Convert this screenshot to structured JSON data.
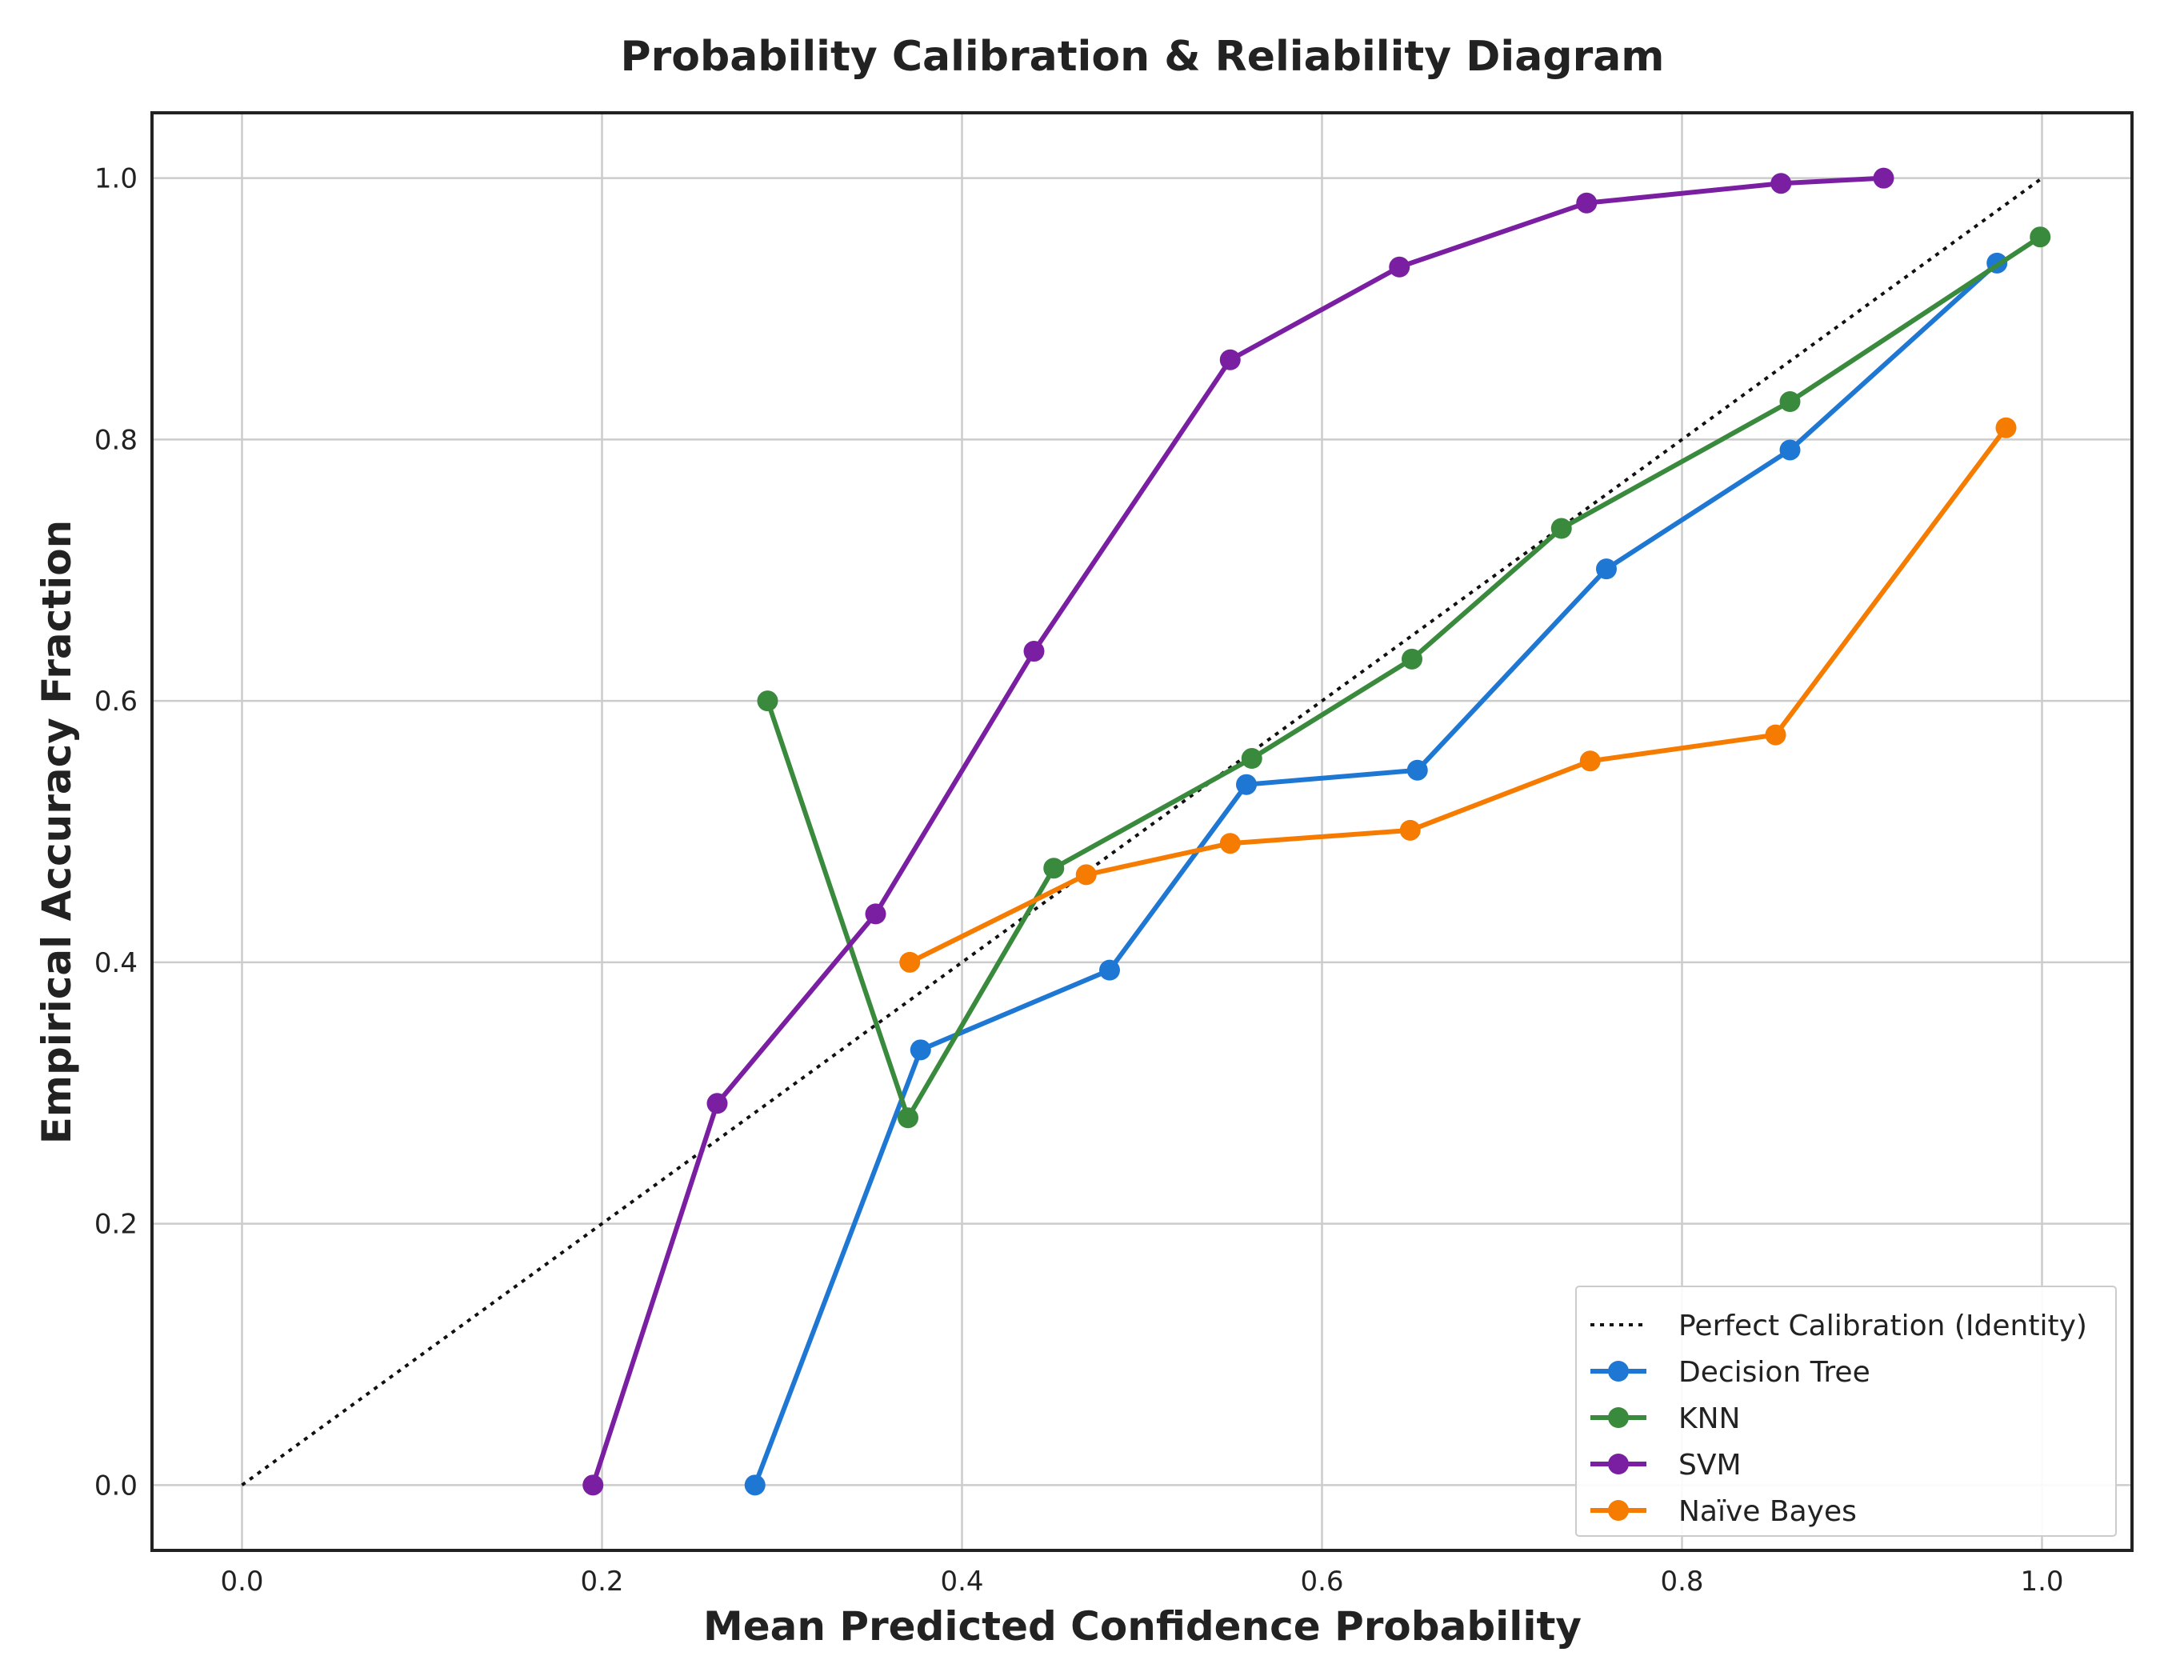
{
  "chart_data": {
    "type": "line",
    "title": "Probability Calibration & Reliability Diagram",
    "xlabel": "Mean Predicted Confidence Probability",
    "ylabel": "Empirical Accuracy Fraction",
    "xlim": [
      -0.05,
      1.05
    ],
    "ylim": [
      -0.05,
      1.05
    ],
    "xticks": [
      "0.0",
      "0.2",
      "0.4",
      "0.6",
      "0.8",
      "1.0"
    ],
    "yticks": [
      "0.0",
      "0.2",
      "0.4",
      "0.6",
      "0.8",
      "1.0"
    ],
    "grid": true,
    "legend_position": "bottom-right",
    "reference_line": {
      "name": "Perfect Calibration (Identity)",
      "x": [
        0,
        1
      ],
      "y": [
        0,
        1
      ],
      "style": "dotted",
      "color": "#111111"
    },
    "series": [
      {
        "name": "Decision Tree",
        "color": "#1f77d4",
        "x": [
          0.285,
          0.377,
          0.482,
          0.558,
          0.653,
          0.758,
          0.86,
          0.975
        ],
        "y": [
          0.0,
          0.333,
          0.394,
          0.536,
          0.547,
          0.701,
          0.792,
          0.935
        ]
      },
      {
        "name": "KNN",
        "color": "#3a8a3e",
        "x": [
          0.292,
          0.37,
          0.451,
          0.561,
          0.65,
          0.733,
          0.86,
          0.999
        ],
        "y": [
          0.6,
          0.281,
          0.472,
          0.556,
          0.632,
          0.732,
          0.829,
          0.955
        ]
      },
      {
        "name": "SVM",
        "color": "#7a1fa2",
        "x": [
          0.195,
          0.264,
          0.352,
          0.44,
          0.549,
          0.643,
          0.747,
          0.855,
          0.912
        ],
        "y": [
          0.0,
          0.292,
          0.437,
          0.638,
          0.861,
          0.932,
          0.981,
          0.996,
          1.0
        ]
      },
      {
        "name": "Naïve Bayes",
        "color": "#f57c00",
        "x": [
          0.371,
          0.469,
          0.549,
          0.649,
          0.749,
          0.852,
          0.98
        ],
        "y": [
          0.4,
          0.467,
          0.491,
          0.501,
          0.554,
          0.574,
          0.809
        ]
      }
    ]
  }
}
